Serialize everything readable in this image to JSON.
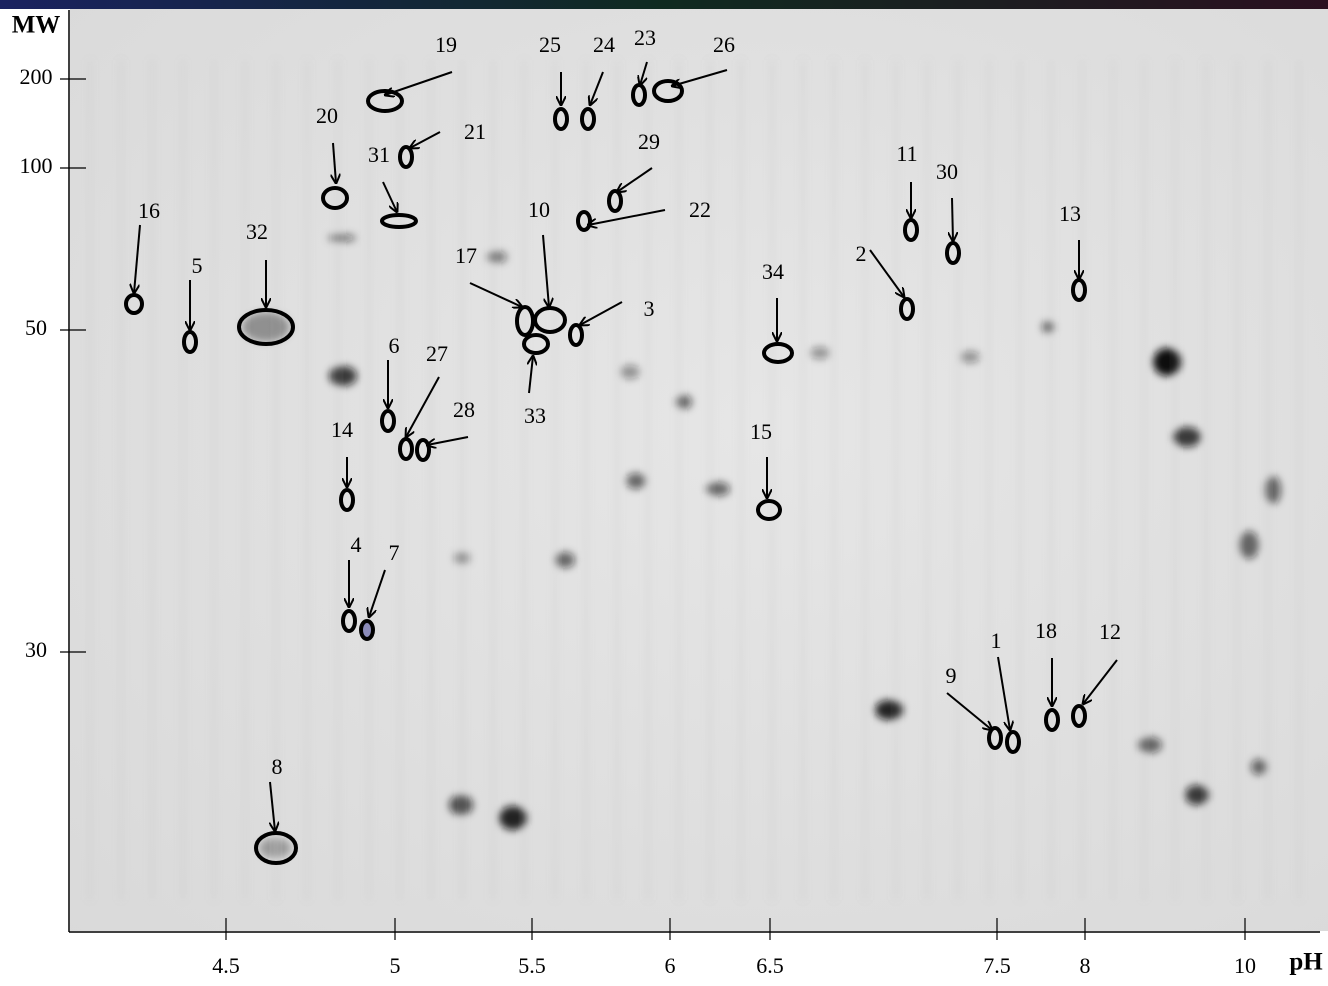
{
  "y_axis": {
    "label": "MW",
    "ticks": [
      "200",
      "100",
      "50",
      "30"
    ]
  },
  "x_axis": {
    "label": "pH",
    "ticks": [
      "4.5",
      "5",
      "5.5",
      "6",
      "6.5",
      "7.5",
      "8",
      "10"
    ]
  },
  "spots": [
    {
      "label": "19"
    },
    {
      "label": "25"
    },
    {
      "label": "24"
    },
    {
      "label": "23"
    },
    {
      "label": "26"
    },
    {
      "label": "20"
    },
    {
      "label": "21"
    },
    {
      "label": "31"
    },
    {
      "label": "29"
    },
    {
      "label": "22"
    },
    {
      "label": "10"
    },
    {
      "label": "17"
    },
    {
      "label": "3"
    },
    {
      "label": "33"
    },
    {
      "label": "16"
    },
    {
      "label": "5"
    },
    {
      "label": "32"
    },
    {
      "label": "6"
    },
    {
      "label": "27"
    },
    {
      "label": "28"
    },
    {
      "label": "14"
    },
    {
      "label": "4"
    },
    {
      "label": "7"
    },
    {
      "label": "8"
    },
    {
      "label": "34"
    },
    {
      "label": "15"
    },
    {
      "label": "11"
    },
    {
      "label": "30"
    },
    {
      "label": "2"
    },
    {
      "label": "13"
    },
    {
      "label": "1"
    },
    {
      "label": "9"
    },
    {
      "label": "18"
    },
    {
      "label": "12"
    }
  ]
}
